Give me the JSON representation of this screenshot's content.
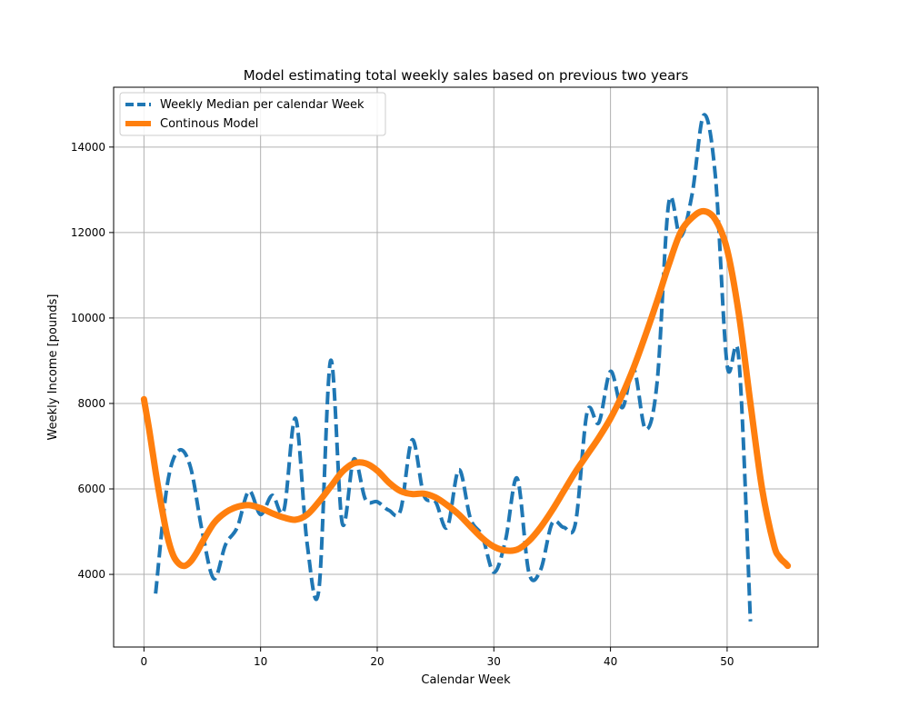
{
  "chart_data": {
    "type": "line",
    "title": "Model estimating total weekly sales based on previous two years",
    "xlabel": "Calendar Week",
    "ylabel": "Weekly Income [pounds]",
    "xlim": [
      -2.6,
      57.8
    ],
    "ylim": [
      2300,
      15400
    ],
    "x_ticks": [
      0,
      10,
      20,
      30,
      40,
      50
    ],
    "y_ticks": [
      4000,
      6000,
      8000,
      10000,
      12000,
      14000
    ],
    "grid": true,
    "legend_position": "upper-left",
    "series": [
      {
        "name": "Weekly Median per calendar Week",
        "style": "dashed",
        "color": "#1f77b4",
        "x": [
          1,
          2,
          3,
          4,
          5,
          6,
          7,
          8,
          9,
          10,
          11,
          12,
          13,
          14,
          15,
          16,
          17,
          18,
          19,
          20,
          21,
          22,
          23,
          24,
          25,
          26,
          27,
          28,
          29,
          30,
          31,
          32,
          33,
          34,
          35,
          36,
          37,
          38,
          39,
          40,
          41,
          42,
          43,
          44,
          45,
          46,
          47,
          48,
          49,
          50,
          51,
          52
        ],
        "y": [
          3550,
          6100,
          6900,
          6500,
          5000,
          3900,
          4700,
          5100,
          5950,
          5400,
          5850,
          5500,
          7650,
          4700,
          3650,
          9000,
          5200,
          6700,
          5750,
          5700,
          5500,
          5500,
          7150,
          5850,
          5700,
          5100,
          6450,
          5300,
          4900,
          4050,
          4800,
          6250,
          4050,
          4100,
          5200,
          5100,
          5200,
          7800,
          7550,
          8750,
          7900,
          8800,
          7400,
          8500,
          12700,
          11900,
          12900,
          14750,
          13300,
          8900,
          9050,
          2900
        ]
      },
      {
        "name": "Continous Model",
        "style": "solid",
        "color": "#ff7f0e",
        "x": [
          0,
          0.5,
          1,
          1.5,
          2,
          2.5,
          3,
          3.5,
          4,
          4.5,
          5,
          6,
          7,
          8,
          9,
          10,
          11,
          12,
          13,
          14,
          15,
          16,
          17,
          18,
          19,
          20,
          21,
          22,
          23,
          24,
          25,
          26,
          27,
          28,
          29,
          30,
          31,
          32,
          33,
          34,
          35,
          36,
          37,
          38,
          39,
          40,
          41,
          42,
          43,
          44,
          45,
          46,
          47,
          48,
          49,
          50,
          51,
          52,
          53,
          54,
          54.5,
          55,
          55.2
        ],
        "y": [
          8100,
          7300,
          6400,
          5600,
          4900,
          4450,
          4250,
          4200,
          4300,
          4500,
          4750,
          5200,
          5450,
          5580,
          5620,
          5550,
          5430,
          5330,
          5280,
          5400,
          5700,
          6050,
          6400,
          6600,
          6600,
          6430,
          6150,
          5950,
          5880,
          5890,
          5800,
          5620,
          5400,
          5120,
          4850,
          4650,
          4560,
          4580,
          4780,
          5100,
          5500,
          5950,
          6400,
          6800,
          7200,
          7650,
          8200,
          8850,
          9600,
          10400,
          11250,
          12000,
          12350,
          12500,
          12300,
          11600,
          10100,
          8000,
          6000,
          4700,
          4400,
          4260,
          4200
        ]
      }
    ]
  }
}
